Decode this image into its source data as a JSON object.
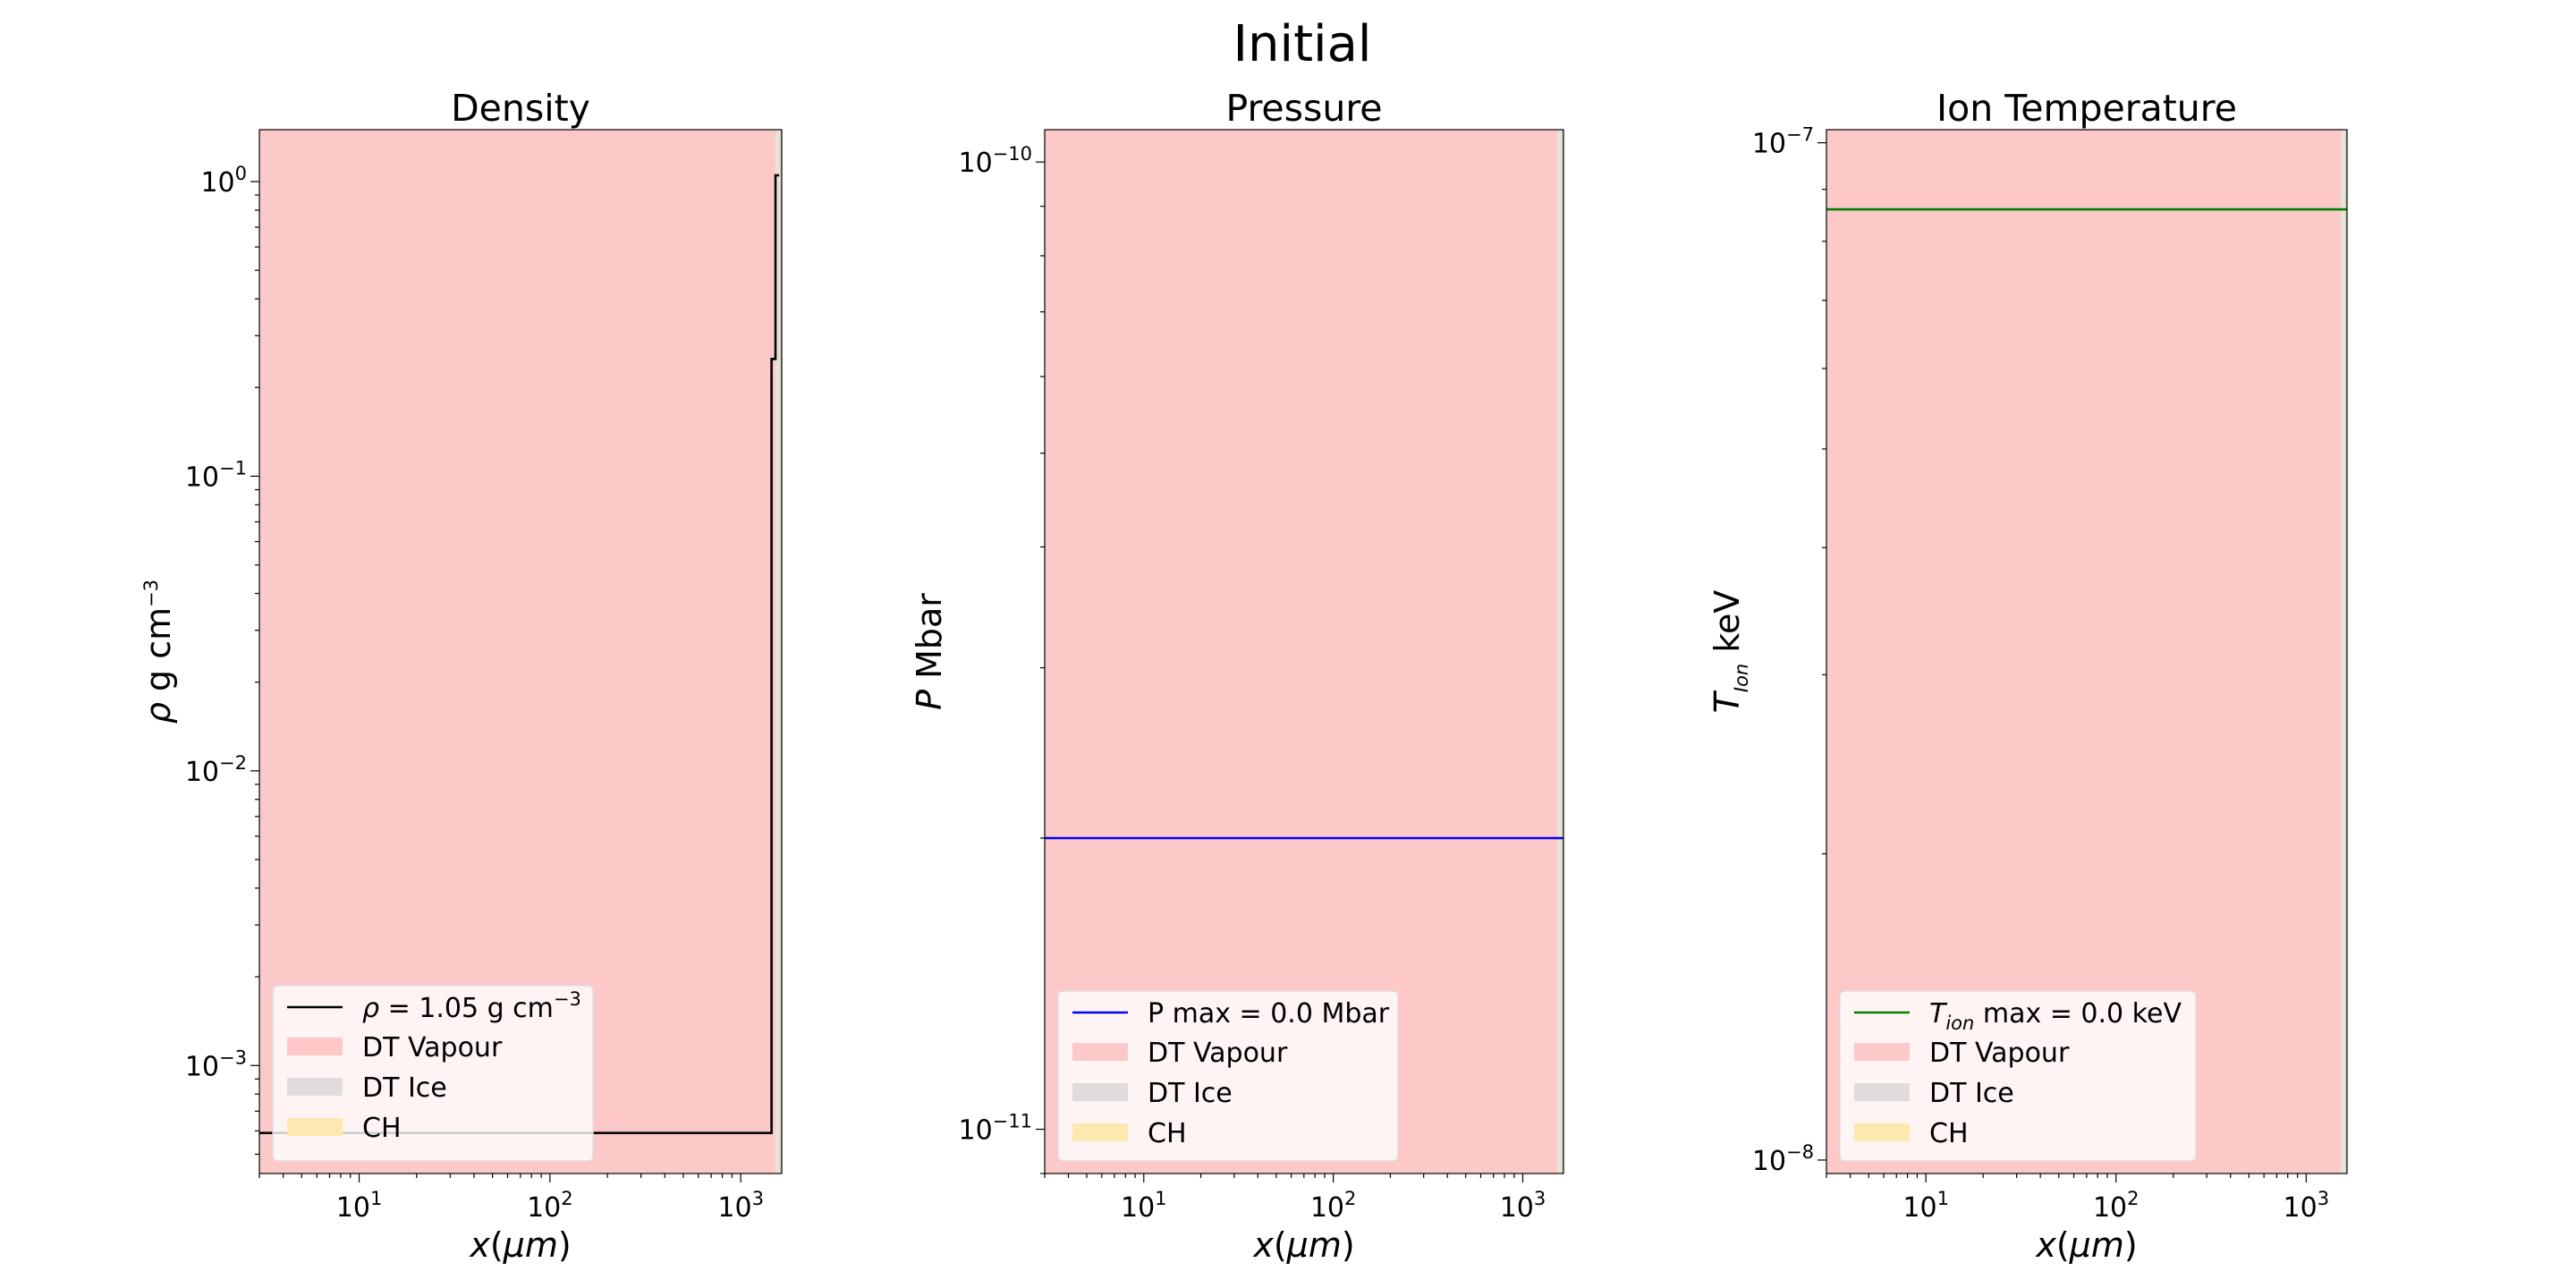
{
  "figure": {
    "title": "Initial"
  },
  "chart_data": [
    {
      "type": "line",
      "title": "Density",
      "xlabel": "x(μm)",
      "ylabel": "ρ g cm−3",
      "xscale": "log",
      "yscale": "log",
      "xlim": [
        3,
        1640
      ],
      "ylim": [
        0.00043,
        1.5
      ],
      "x_ticks": [
        {
          "base": "10",
          "exp": "1"
        },
        {
          "base": "10",
          "exp": "2"
        },
        {
          "base": "10",
          "exp": "3"
        }
      ],
      "y_ticks": [
        {
          "base": "10",
          "exp": "0",
          "v": 1
        },
        {
          "base": "10",
          "exp": "−1",
          "v": 0.1
        },
        {
          "base": "10",
          "exp": "−2",
          "v": 0.01
        },
        {
          "base": "10",
          "exp": "−3",
          "v": 0.001
        }
      ],
      "series": [
        {
          "name": "ρ = 1.05 g cm−3",
          "color": "#000000",
          "x": [
            3,
            1450,
            1450,
            1520,
            1520,
            1590
          ],
          "y": [
            0.00059,
            0.00059,
            0.25,
            0.25,
            1.05,
            1.05
          ]
        }
      ],
      "regions": [
        {
          "name": "DT Vapour",
          "from": 3,
          "to": 1520,
          "color": "#fcc8c8"
        },
        {
          "name": "DT Ice",
          "from": 1520,
          "to": 1600,
          "color": "#e8e3da"
        },
        {
          "name": "CH",
          "from": 1600,
          "to": 1640,
          "color": "#d8d4b8"
        }
      ],
      "legend": {
        "placement": "lower-left",
        "line_label_parts": [
          "ρ",
          " = 1.05 g cm",
          "−3"
        ],
        "entries": [
          "DT Vapour",
          "DT Ice",
          "CH"
        ],
        "swatch_colors": [
          "#fcc8c8",
          "#e0dcdc",
          "#fde8b0"
        ]
      },
      "grid": false
    },
    {
      "type": "line",
      "title": "Pressure",
      "xlabel": "x(μm)",
      "ylabel": "P Mbar",
      "xscale": "log",
      "yscale": "log",
      "xlim": [
        3,
        1640
      ],
      "ylim": [
        9e-12,
        1.08e-10
      ],
      "x_ticks": [
        {
          "base": "10",
          "exp": "1"
        },
        {
          "base": "10",
          "exp": "2"
        },
        {
          "base": "10",
          "exp": "3"
        }
      ],
      "y_ticks": [
        {
          "base": "10",
          "exp": "−10",
          "v": 1e-10
        },
        {
          "base": "10",
          "exp": "−11",
          "v": 1e-11
        }
      ],
      "series": [
        {
          "name": "P max = 0.0 Mbar",
          "color": "#0000ff",
          "x": [
            3,
            1640
          ],
          "y": [
            2e-11,
            2e-11
          ]
        }
      ],
      "regions": [
        {
          "name": "DT Vapour",
          "from": 3,
          "to": 1520,
          "color": "#fcc8c8"
        },
        {
          "name": "DT Ice",
          "from": 1520,
          "to": 1600,
          "color": "#e8e3da"
        },
        {
          "name": "CH",
          "from": 1600,
          "to": 1640,
          "color": "#d8d4b8"
        }
      ],
      "legend": {
        "placement": "lower-left",
        "line_label_parts": [
          "P max = 0.0 Mbar"
        ],
        "entries": [
          "DT Vapour",
          "DT Ice",
          "CH"
        ],
        "swatch_colors": [
          "#fcc8c8",
          "#e0dcdc",
          "#fde8b0"
        ]
      },
      "grid": false
    },
    {
      "type": "line",
      "title": "Ion Temperature",
      "xlabel": "x(μm)",
      "ylabel": "Tion keV",
      "xscale": "log",
      "yscale": "log",
      "xlim": [
        3,
        1640
      ],
      "ylim": [
        9.7e-09,
        1.03e-07
      ],
      "x_ticks": [
        {
          "base": "10",
          "exp": "1"
        },
        {
          "base": "10",
          "exp": "2"
        },
        {
          "base": "10",
          "exp": "3"
        }
      ],
      "y_ticks": [
        {
          "base": "10",
          "exp": "−7",
          "v": 1e-07
        },
        {
          "base": "10",
          "exp": "−8",
          "v": 1e-08
        }
      ],
      "series": [
        {
          "name": "Tion max = 0.0 keV",
          "color": "#008000",
          "x": [
            3,
            1640
          ],
          "y": [
            8.6e-08,
            8.6e-08
          ]
        }
      ],
      "regions": [
        {
          "name": "DT Vapour",
          "from": 3,
          "to": 1520,
          "color": "#fcc8c8"
        },
        {
          "name": "DT Ice",
          "from": 1520,
          "to": 1600,
          "color": "#e8e3da"
        },
        {
          "name": "CH",
          "from": 1600,
          "to": 1640,
          "color": "#d8d4b8"
        }
      ],
      "legend": {
        "placement": "lower-left",
        "line_label_parts": [
          "T",
          "ion",
          " max = 0.0 keV"
        ],
        "entries": [
          "DT Vapour",
          "DT Ice",
          "CH"
        ],
        "swatch_colors": [
          "#fcc8c8",
          "#e0dcdc",
          "#fde8b0"
        ]
      },
      "grid": false
    }
  ]
}
